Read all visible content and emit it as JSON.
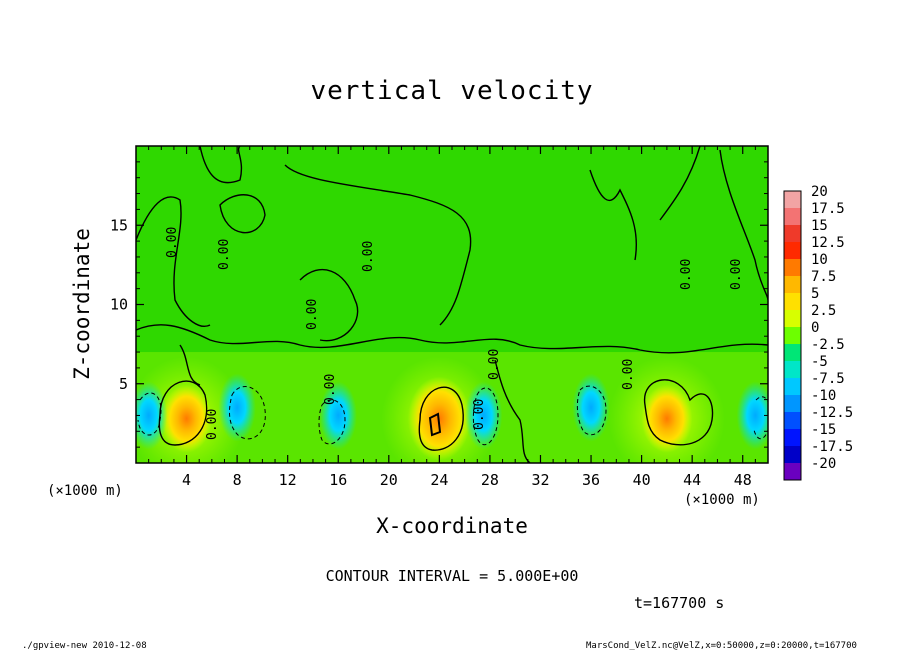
{
  "chart_data": {
    "type": "heatmap",
    "title": "vertical velocity",
    "xlabel": "X-coordinate",
    "ylabel": "Z-coordinate",
    "x_unit_note": "(×1000 m)",
    "x_ticks": [
      4,
      8,
      12,
      16,
      20,
      24,
      28,
      32,
      36,
      40,
      44,
      48
    ],
    "y_ticks": [
      5,
      10,
      15
    ],
    "xlim": [
      0,
      50
    ],
    "ylim": [
      0,
      20
    ],
    "colorbar": {
      "ticks": [
        "20",
        "17.5",
        "15",
        "12.5",
        "10",
        "7.5",
        "5",
        "2.5",
        "0",
        "-2.5",
        "-5",
        "-7.5",
        "-10",
        "-12.5",
        "-15",
        "-17.5",
        "-20"
      ],
      "colors": [
        "#f2a4a4",
        "#f37373",
        "#ef3a2a",
        "#ff2a00",
        "#ff7a00",
        "#ffb800",
        "#ffe000",
        "#d7ff00",
        "#6dff00",
        "#00e676",
        "#00e6c8",
        "#00c8ff",
        "#0096ff",
        "#0050ff",
        "#0014ff",
        "#0000c8",
        "#6a00c0"
      ]
    },
    "contour_label": "0.00",
    "features": [
      {
        "kind": "updraft",
        "x": 4,
        "z": 2.8,
        "peak": 7.5
      },
      {
        "kind": "updraft",
        "x": 24,
        "z": 2.8,
        "peak": 10
      },
      {
        "kind": "updraft",
        "x": 42,
        "z": 2.8,
        "peak": 7.5
      },
      {
        "kind": "downdraft",
        "x": 1,
        "z": 3,
        "peak": -5
      },
      {
        "kind": "downdraft",
        "x": 8,
        "z": 3.5,
        "peak": -5
      },
      {
        "kind": "downdraft",
        "x": 16,
        "z": 3,
        "peak": -5
      },
      {
        "kind": "downdraft",
        "x": 27.5,
        "z": 3,
        "peak": -5
      },
      {
        "kind": "downdraft",
        "x": 36,
        "z": 3.5,
        "peak": -5
      },
      {
        "kind": "downdraft",
        "x": 49,
        "z": 3,
        "peak": -5
      }
    ]
  },
  "contour_interval": "CONTOUR INTERVAL = 5.000E+00",
  "time_label": "t=167700 s",
  "footer_left": "./gpview-new  2010-12-08",
  "footer_right": "MarsCond_VelZ.nc@VelZ,x=0:50000,z=0:20000,t=167700",
  "x_unit_left": "(×1000 m)",
  "x_unit_right": "(×1000 m)"
}
